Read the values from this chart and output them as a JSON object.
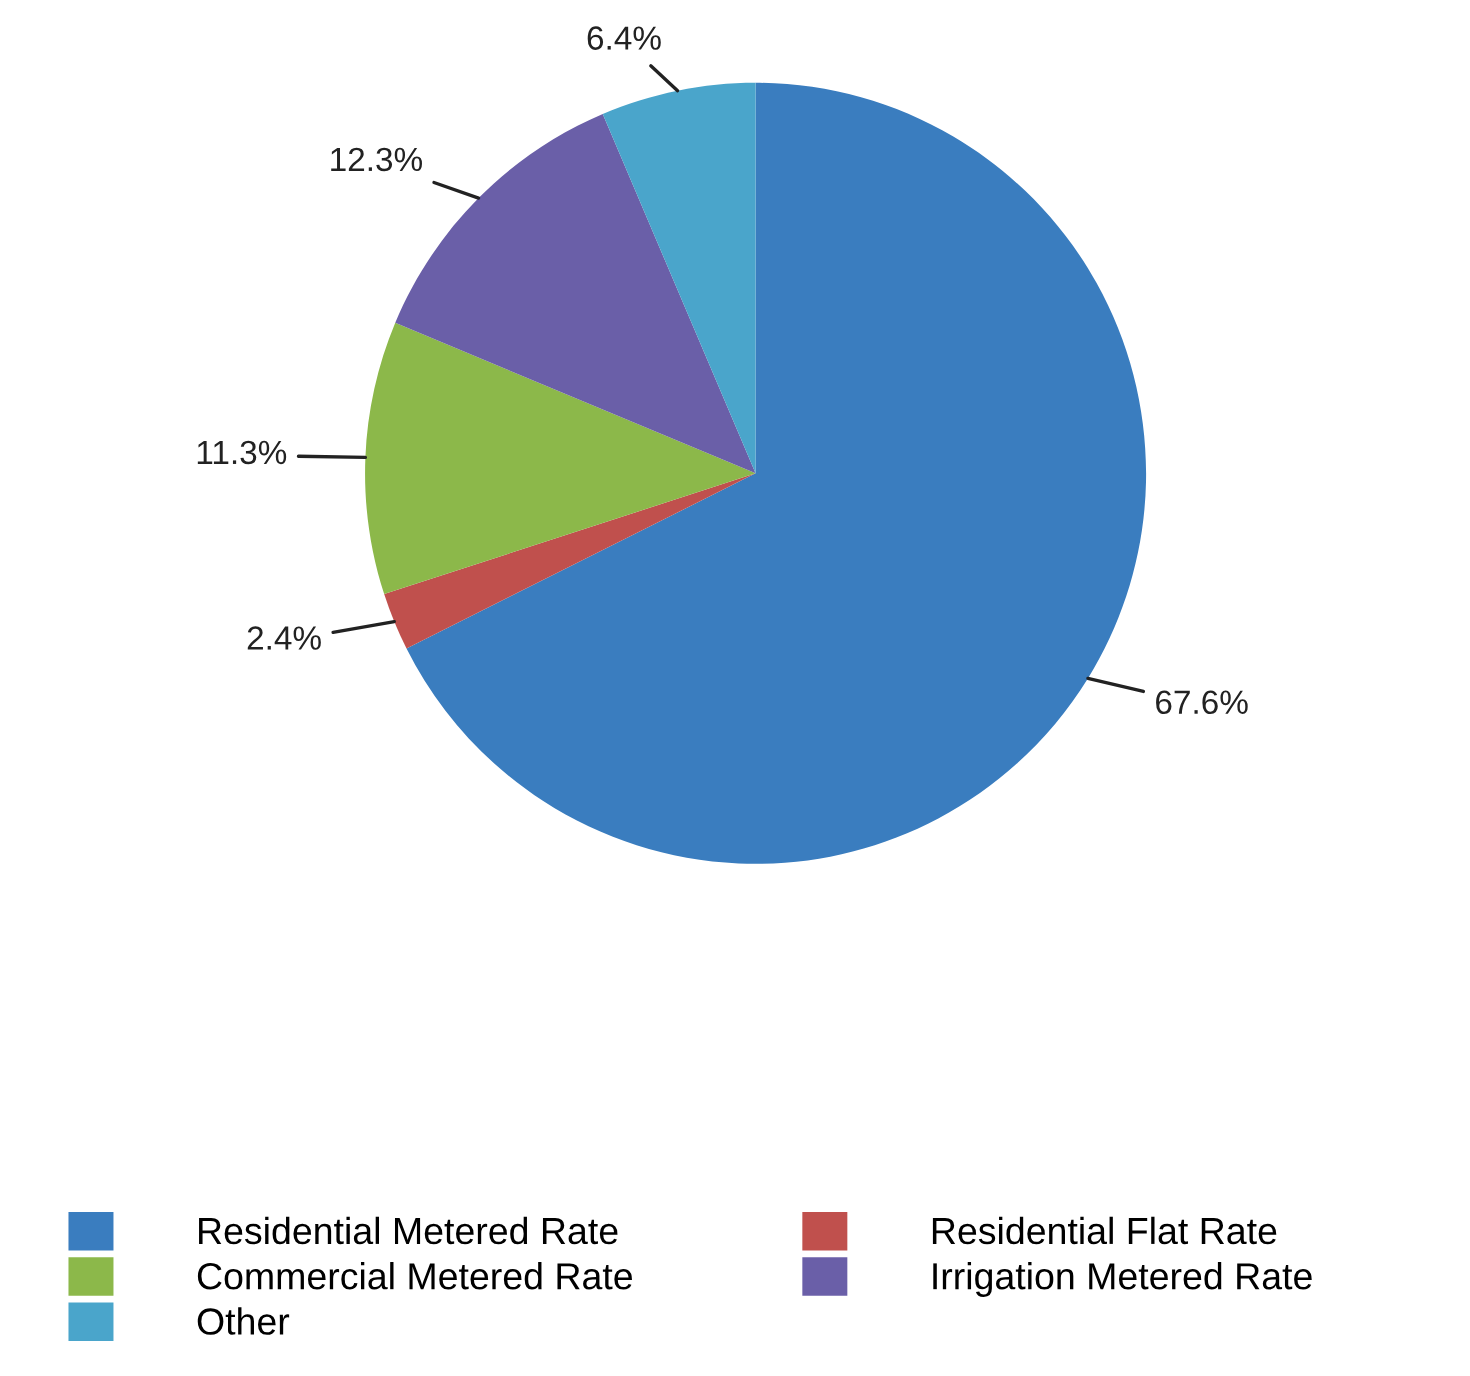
{
  "chart_data": {
    "type": "pie",
    "categories": [
      "Residential Metered Rate",
      "Residential Flat Rate",
      "Commercial Metered Rate",
      "Irrigation Metered Rate",
      "Other"
    ],
    "values": [
      67.6,
      2.4,
      11.3,
      12.3,
      6.4
    ],
    "colors": [
      "#3a7dbf",
      "#c0504d",
      "#8cb84a",
      "#6a5fa8",
      "#4aa5cb"
    ],
    "value_labels": [
      "67.6%",
      "2.4%",
      "11.3%",
      "12.3%",
      "6.4%"
    ],
    "legend": "bottom"
  }
}
